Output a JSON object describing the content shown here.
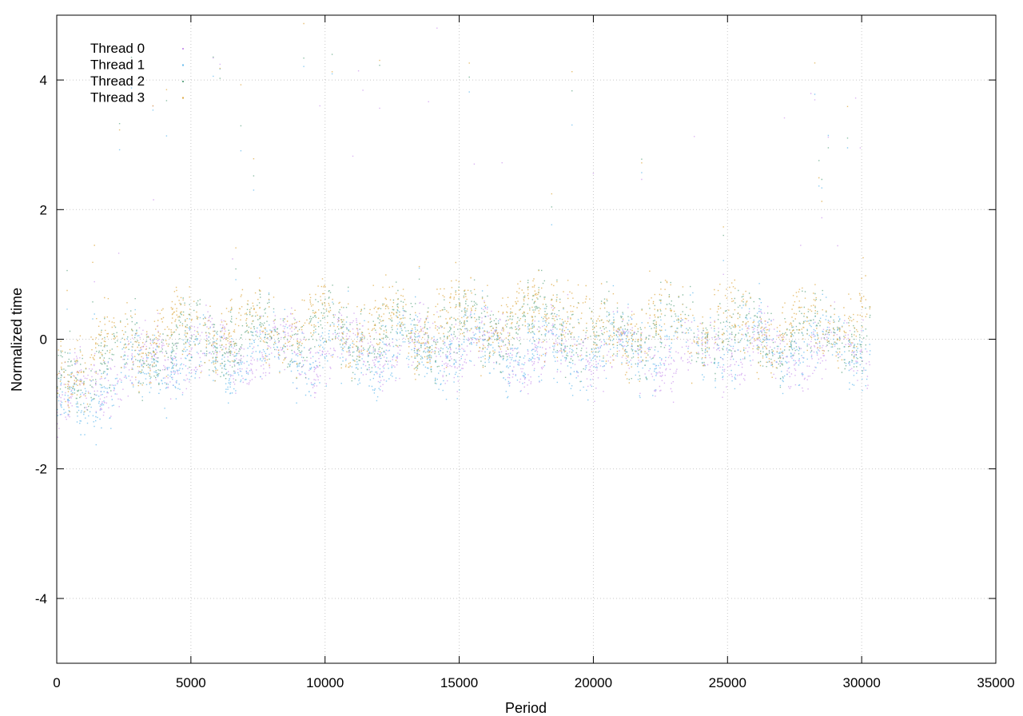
{
  "chart_data": {
    "type": "scatter",
    "title": "",
    "xlabel": "Period",
    "ylabel": "Normalized time",
    "xlim": [
      0,
      35000
    ],
    "ylim": [
      -5,
      5
    ],
    "x_ticks": [
      0,
      5000,
      10000,
      15000,
      20000,
      25000,
      30000,
      35000
    ],
    "y_ticks": [
      -4,
      -2,
      0,
      2,
      4
    ],
    "grid": true,
    "legend_position": "top-left",
    "n_periods": 30300,
    "series": [
      {
        "name": "Thread 0",
        "color": "#cc99ee",
        "profile": [
          [
            0,
            -1.1
          ],
          [
            1000,
            -0.8
          ],
          [
            2500,
            -0.45
          ],
          [
            5000,
            -0.2
          ],
          [
            7500,
            -0.2
          ],
          [
            10000,
            -0.15
          ],
          [
            15000,
            -0.1
          ],
          [
            20000,
            -0.2
          ],
          [
            22500,
            -0.3
          ],
          [
            25000,
            -0.1
          ],
          [
            27500,
            -0.2
          ],
          [
            30300,
            -0.1
          ]
        ],
        "spread": 0.3
      },
      {
        "name": "Thread 1",
        "color": "#66bbee",
        "profile": [
          [
            0,
            -1.2
          ],
          [
            1000,
            -0.9
          ],
          [
            2500,
            -0.5
          ],
          [
            5000,
            -0.3
          ],
          [
            7500,
            -0.2
          ],
          [
            10000,
            -0.2
          ],
          [
            15000,
            -0.15
          ],
          [
            20000,
            -0.2
          ],
          [
            22500,
            -0.1
          ],
          [
            25000,
            -0.05
          ],
          [
            27500,
            -0.1
          ],
          [
            30300,
            -0.05
          ]
        ],
        "spread": 0.32
      },
      {
        "name": "Thread 2",
        "color": "#66aa88",
        "profile": [
          [
            0,
            -0.6
          ],
          [
            1000,
            -0.45
          ],
          [
            2500,
            -0.2
          ],
          [
            5000,
            0.0
          ],
          [
            7500,
            0.05
          ],
          [
            10000,
            0.1
          ],
          [
            15000,
            0.1
          ],
          [
            18500,
            0.35
          ],
          [
            20000,
            0.0
          ],
          [
            22500,
            0.15
          ],
          [
            25000,
            0.1
          ],
          [
            27500,
            0.05
          ],
          [
            30300,
            0.15
          ]
        ],
        "spread": 0.33
      },
      {
        "name": "Thread 3",
        "color": "#ddaa44",
        "profile": [
          [
            0,
            -0.5
          ],
          [
            1000,
            -0.3
          ],
          [
            2500,
            0.0
          ],
          [
            5000,
            0.15
          ],
          [
            7500,
            0.2
          ],
          [
            10000,
            0.2
          ],
          [
            15000,
            0.25
          ],
          [
            17500,
            0.3
          ],
          [
            18700,
            0.6
          ],
          [
            20000,
            0.05
          ],
          [
            22500,
            0.2
          ],
          [
            25000,
            0.25
          ],
          [
            27500,
            0.1
          ],
          [
            30300,
            0.4
          ]
        ],
        "spread": 0.35
      }
    ]
  }
}
